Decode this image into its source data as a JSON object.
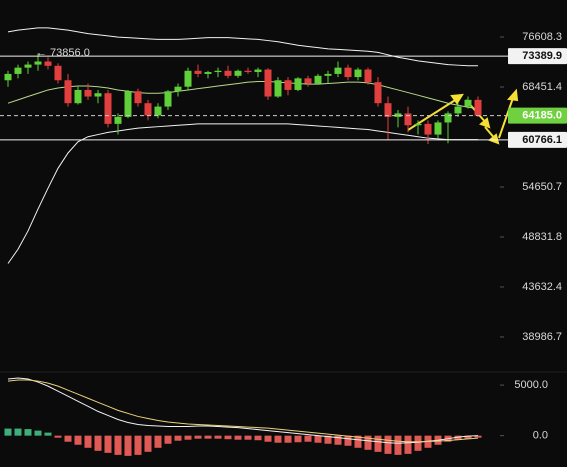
{
  "chart_data": [
    {
      "type": "candlestick",
      "log_scale": true,
      "ylim": [
        36190,
        83270
      ],
      "yticks": [
        76608.3,
        68451.4,
        54650.7,
        48831.8,
        43632.4,
        38986.7
      ],
      "up_color": "#5fd03a",
      "down_color": "#e2403e",
      "ohlc": [
        [
          69500,
          71000,
          68500,
          70500
        ],
        [
          70500,
          72000,
          69800,
          71500
        ],
        [
          71500,
          72500,
          70500,
          72000
        ],
        [
          72000,
          73856,
          71000,
          72500
        ],
        [
          72500,
          73200,
          71200,
          71800
        ],
        [
          71800,
          72200,
          69000,
          69500
        ],
        [
          69500,
          70500,
          65500,
          66000
        ],
        [
          66000,
          68500,
          65800,
          68000
        ],
        [
          68000,
          69000,
          66500,
          67000
        ],
        [
          67000,
          68000,
          66000,
          67500
        ],
        [
          67500,
          68000,
          62500,
          63000
        ],
        [
          63000,
          64500,
          61500,
          64000
        ],
        [
          64000,
          68000,
          63800,
          67800
        ],
        [
          67800,
          68200,
          65500,
          66000
        ],
        [
          66000,
          66500,
          63500,
          64200
        ],
        [
          64200,
          66000,
          63800,
          65500
        ],
        [
          65500,
          68000,
          65000,
          67800
        ],
        [
          67800,
          69000,
          67000,
          68500
        ],
        [
          68500,
          71500,
          68000,
          71000
        ],
        [
          71000,
          72000,
          70000,
          70500
        ],
        [
          70500,
          71000,
          69800,
          70800
        ],
        [
          70800,
          71500,
          70000,
          71000
        ],
        [
          71000,
          71800,
          69800,
          70200
        ],
        [
          70200,
          71200,
          69900,
          71000
        ],
        [
          71000,
          71500,
          70500,
          70800
        ],
        [
          70800,
          71500,
          70000,
          71200
        ],
        [
          71200,
          71400,
          66500,
          67000
        ],
        [
          67000,
          70000,
          66800,
          69500
        ],
        [
          69500,
          70000,
          67200,
          68000
        ],
        [
          68000,
          70000,
          67800,
          69800
        ],
        [
          69800,
          70200,
          68500,
          69000
        ],
        [
          69000,
          70500,
          68800,
          70200
        ],
        [
          70200,
          71000,
          69000,
          70500
        ],
        [
          70500,
          72500,
          70000,
          71500
        ],
        [
          71500,
          72000,
          69500,
          70000
        ],
        [
          70000,
          71500,
          69500,
          71200
        ],
        [
          71200,
          71500,
          68800,
          69200
        ],
        [
          69200,
          70000,
          65500,
          66000
        ],
        [
          66000,
          67000,
          60800,
          64000
        ],
        [
          64000,
          65000,
          62500,
          64500
        ],
        [
          64500,
          65500,
          61800,
          62800
        ],
        [
          62800,
          63500,
          61500,
          63000
        ],
        [
          63000,
          63500,
          60200,
          61500
        ],
        [
          61500,
          63500,
          61000,
          63200
        ],
        [
          63200,
          64800,
          60300,
          64500
        ],
        [
          64500,
          66000,
          64000,
          65500
        ],
        [
          65500,
          67000,
          65200,
          66500
        ],
        [
          66500,
          67000,
          64000,
          64185
        ]
      ],
      "series": [
        {
          "color": "#f2f2f2",
          "values": [
            77500,
            77800,
            78000,
            78200,
            78200,
            78000,
            77800,
            77500,
            77200,
            77000,
            76800,
            76600,
            76500,
            76400,
            76300,
            76200,
            76200,
            76200,
            76300,
            76400,
            76500,
            76500,
            76500,
            76400,
            76300,
            76200,
            76000,
            75800,
            75500,
            75200,
            75000,
            74800,
            74600,
            74500,
            74400,
            74300,
            74200,
            74000,
            73600,
            73200,
            72900,
            72600,
            72400,
            72200,
            72000,
            71900,
            71800,
            71800
          ]
        },
        {
          "color": "#b6d98a",
          "values": [
            66000,
            66500,
            67000,
            67500,
            68000,
            68300,
            68500,
            68600,
            68600,
            68500,
            68300,
            68000,
            67800,
            67600,
            67500,
            67500,
            67600,
            67800,
            68000,
            68200,
            68400,
            68600,
            68800,
            69000,
            69200,
            69300,
            69300,
            69200,
            69100,
            69000,
            68900,
            68900,
            69000,
            69100,
            69200,
            69200,
            69100,
            68800,
            68400,
            68000,
            67600,
            67200,
            66800,
            66400,
            66000,
            65700,
            65400,
            65200
          ]
        },
        {
          "color": "#f2f2f2",
          "values": [
            46000,
            47500,
            49500,
            52000,
            54500,
            57000,
            59000,
            60500,
            61200,
            61500,
            61800,
            62000,
            62200,
            62400,
            62500,
            62600,
            62700,
            62800,
            62900,
            63000,
            63000,
            63000,
            63000,
            63000,
            63000,
            63000,
            63000,
            63000,
            63000,
            62900,
            62800,
            62700,
            62600,
            62500,
            62400,
            62300,
            62200,
            62000,
            61800,
            61600,
            61400,
            61200,
            61000,
            60900,
            60800,
            60800,
            60800,
            60800
          ]
        }
      ],
      "price_lines": [
        {
          "value": 73389.9,
          "color": "#f2f2f2",
          "box_color": "#f2f2f2",
          "text_color": "#111111",
          "dashed": false
        },
        {
          "value": 64185,
          "label": "64185.0",
          "color": "#cccccc",
          "box_color": "#6fd13f",
          "text_color": "#ffffff",
          "dashed": true
        },
        {
          "value": 60766.1,
          "color": "#f2f2f2",
          "box_color": "#f2f2f2",
          "text_color": "#111111",
          "dashed": false
        }
      ],
      "annotation": {
        "value": 73856,
        "label": "← 73856.0"
      }
    },
    {
      "type": "bar",
      "ylim": [
        -3100,
        6000
      ],
      "yticks": [
        {
          "value": 5000,
          "label": "5000.0"
        },
        {
          "value": 0,
          "label": "0.0"
        }
      ],
      "pos_color": "#3fae7a",
      "neg_color": "#e05a55",
      "values": [
        700,
        700,
        650,
        500,
        300,
        -200,
        -600,
        -900,
        -1200,
        -1500,
        -1700,
        -1900,
        -2000,
        -1900,
        -1600,
        -1200,
        -800,
        -500,
        -400,
        -300,
        -300,
        -300,
        -350,
        -400,
        -400,
        -450,
        -600,
        -700,
        -700,
        -650,
        -600,
        -700,
        -800,
        -900,
        -1000,
        -1200,
        -1400,
        -1600,
        -1800,
        -1900,
        -1800,
        -1500,
        -1200,
        -900,
        -600,
        -400,
        -300,
        -200
      ],
      "series": [
        {
          "color": "#f2f2f2",
          "values": [
            5600,
            5700,
            5600,
            5300,
            4900,
            4400,
            3900,
            3400,
            2900,
            2400,
            2000,
            1600,
            1300,
            1100,
            1000,
            950,
            900,
            900,
            900,
            950,
            950,
            900,
            850,
            800,
            700,
            600,
            500,
            400,
            300,
            200,
            100,
            0,
            -100,
            -200,
            -300,
            -400,
            -500,
            -600,
            -700,
            -750,
            -700,
            -650,
            -550,
            -450,
            -300,
            -150,
            -50,
            0
          ]
        },
        {
          "color": "#e8d27a",
          "values": [
            5400,
            5500,
            5500,
            5400,
            5200,
            4900,
            4500,
            4100,
            3700,
            3300,
            2900,
            2500,
            2200,
            1900,
            1700,
            1500,
            1350,
            1250,
            1150,
            1100,
            1050,
            1000,
            950,
            900,
            850,
            800,
            750,
            650,
            550,
            450,
            350,
            250,
            150,
            50,
            -50,
            -150,
            -250,
            -350,
            -450,
            -550,
            -600,
            -600,
            -580,
            -540,
            -480,
            -400,
            -320,
            -250
          ]
        }
      ]
    }
  ]
}
